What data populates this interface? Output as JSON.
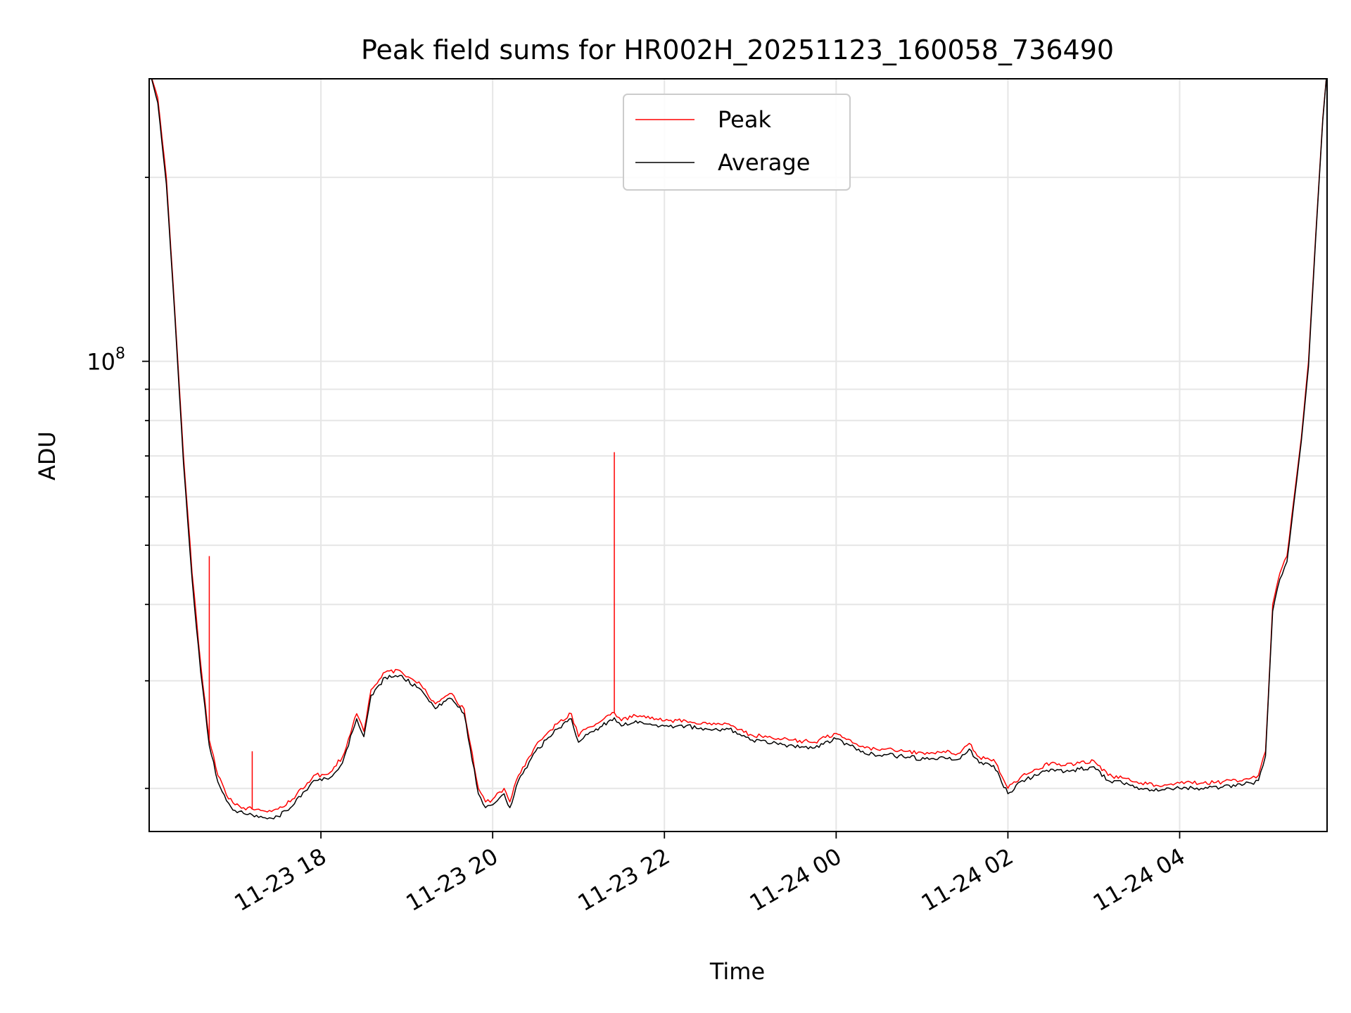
{
  "chart_data": {
    "type": "line",
    "title": "Peak field sums for HR002H_20251123_160058_736490",
    "xlabel": "Time",
    "ylabel": "ADU",
    "yscale": "log",
    "xlim": [
      "2025-11-23 16:00",
      "2025-11-24 05:43"
    ],
    "ylim": [
      17000000,
      290000000
    ],
    "x_ticks": [
      "2025-11-23 18:00",
      "2025-11-23 20:00",
      "2025-11-23 22:00",
      "2025-11-24 00:00",
      "2025-11-24 02:00",
      "2025-11-24 04:00"
    ],
    "x_tick_labels": [
      "11-23 18",
      "11-23 20",
      "11-23 22",
      "11-24 00",
      "11-24 02",
      "11-24 04"
    ],
    "y_major_ticks": [
      100000000
    ],
    "y_major_tick_label": {
      "base": "10",
      "exponent": "8"
    },
    "y_minor_ticks": [
      20000000,
      30000000,
      40000000,
      50000000,
      60000000,
      70000000,
      80000000,
      90000000,
      200000000
    ],
    "grid": true,
    "legend": {
      "position": "upper center",
      "entries": [
        "Peak",
        "Average"
      ]
    },
    "series": [
      {
        "name": "Peak",
        "color": "#ff0000",
        "x": [
          "2025-11-23 16:00",
          "2025-11-23 16:06",
          "2025-11-23 16:12",
          "2025-11-23 16:18",
          "2025-11-23 16:24",
          "2025-11-23 16:30",
          "2025-11-23 16:36",
          "2025-11-23 16:42",
          "2025-11-23 16:48",
          "2025-11-23 16:54",
          "2025-11-23 17:00",
          "2025-11-23 17:06",
          "2025-11-23 17:12",
          "2025-11-23 17:18",
          "2025-11-23 17:24",
          "2025-11-23 17:30",
          "2025-11-23 17:40",
          "2025-11-23 17:55",
          "2025-11-23 18:05",
          "2025-11-23 18:15",
          "2025-11-23 18:25",
          "2025-11-23 18:30",
          "2025-11-23 18:35",
          "2025-11-23 18:45",
          "2025-11-23 18:55",
          "2025-11-23 19:10",
          "2025-11-23 19:20",
          "2025-11-23 19:30",
          "2025-11-23 19:40",
          "2025-11-23 19:50",
          "2025-11-23 19:55",
          "2025-11-23 20:00",
          "2025-11-23 20:08",
          "2025-11-23 20:12",
          "2025-11-23 20:18",
          "2025-11-23 20:30",
          "2025-11-23 20:45",
          "2025-11-23 20:55",
          "2025-11-23 21:00",
          "2025-11-23 21:05",
          "2025-11-23 21:15",
          "2025-11-23 21:25",
          "2025-11-23 21:30",
          "2025-11-23 21:40",
          "2025-11-23 21:50",
          "2025-11-23 22:00",
          "2025-11-23 22:15",
          "2025-11-23 22:30",
          "2025-11-23 22:45",
          "2025-11-23 23:00",
          "2025-11-23 23:15",
          "2025-11-23 23:30",
          "2025-11-23 23:45",
          "2025-11-24 00:00",
          "2025-11-24 00:10",
          "2025-11-24 00:20",
          "2025-11-24 00:35",
          "2025-11-24 00:50",
          "2025-11-24 01:05",
          "2025-11-24 01:15",
          "2025-11-24 01:25",
          "2025-11-24 01:33",
          "2025-11-24 01:40",
          "2025-11-24 01:50",
          "2025-11-24 02:00",
          "2025-11-24 02:10",
          "2025-11-24 02:20",
          "2025-11-24 02:30",
          "2025-11-24 02:40",
          "2025-11-24 02:50",
          "2025-11-24 03:00",
          "2025-11-24 03:10",
          "2025-11-24 03:20",
          "2025-11-24 03:30",
          "2025-11-24 03:45",
          "2025-11-24 04:00",
          "2025-11-24 04:15",
          "2025-11-24 04:30",
          "2025-11-24 04:45",
          "2025-11-24 04:50",
          "2025-11-24 04:55",
          "2025-11-24 05:00",
          "2025-11-24 05:05",
          "2025-11-24 05:10",
          "2025-11-24 05:15",
          "2025-11-24 05:20",
          "2025-11-24 05:25",
          "2025-11-24 05:30",
          "2025-11-24 05:35",
          "2025-11-24 05:40",
          "2025-11-24 05:43"
        ],
        "y": [
          300000000,
          270000000,
          200000000,
          120000000,
          70000000,
          45000000,
          32000000,
          24000000,
          21000000,
          19500000,
          18800000,
          18600000,
          18500000,
          18400000,
          18400000,
          18500000,
          19200000,
          21000000,
          21100000,
          22500000,
          26500000,
          24800000,
          29000000,
          31000000,
          31200000,
          29500000,
          27500000,
          28600000,
          27000000,
          20000000,
          19000000,
          19200000,
          20000000,
          19000000,
          21000000,
          23500000,
          25500000,
          26500000,
          24300000,
          25000000,
          25700000,
          26600000,
          25800000,
          26300000,
          26000000,
          25800000,
          25800000,
          25500000,
          25500000,
          24500000,
          24200000,
          24000000,
          23800000,
          24600000,
          24000000,
          23300000,
          23200000,
          23000000,
          22800000,
          23000000,
          22800000,
          23700000,
          22500000,
          22300000,
          20000000,
          21000000,
          21500000,
          22000000,
          21800000,
          22000000,
          22200000,
          21000000,
          20800000,
          20500000,
          20200000,
          20400000,
          20400000,
          20500000,
          20700000,
          20800000,
          21000000,
          23000000,
          40000000,
          45000000,
          48000000,
          60000000,
          75000000,
          100000000,
          160000000,
          250000000,
          300000000
        ],
        "spikes": [
          {
            "x": "2025-11-23 16:42",
            "y": 48000000
          },
          {
            "x": "2025-11-23 17:12",
            "y": 23000000
          },
          {
            "x": "2025-11-23 21:25",
            "y": 71000000
          }
        ]
      },
      {
        "name": "Average",
        "color": "#000000",
        "x": [
          "2025-11-23 16:00",
          "2025-11-23 16:06",
          "2025-11-23 16:12",
          "2025-11-23 16:18",
          "2025-11-23 16:24",
          "2025-11-23 16:30",
          "2025-11-23 16:36",
          "2025-11-23 16:42",
          "2025-11-23 16:48",
          "2025-11-23 16:54",
          "2025-11-23 17:00",
          "2025-11-23 17:06",
          "2025-11-23 17:12",
          "2025-11-23 17:18",
          "2025-11-23 17:24",
          "2025-11-23 17:30",
          "2025-11-23 17:40",
          "2025-11-23 17:55",
          "2025-11-23 18:05",
          "2025-11-23 18:15",
          "2025-11-23 18:25",
          "2025-11-23 18:30",
          "2025-11-23 18:35",
          "2025-11-23 18:45",
          "2025-11-23 18:55",
          "2025-11-23 19:10",
          "2025-11-23 19:20",
          "2025-11-23 19:30",
          "2025-11-23 19:40",
          "2025-11-23 19:50",
          "2025-11-23 19:55",
          "2025-11-23 20:00",
          "2025-11-23 20:08",
          "2025-11-23 20:12",
          "2025-11-23 20:18",
          "2025-11-23 20:30",
          "2025-11-23 20:45",
          "2025-11-23 20:55",
          "2025-11-23 21:00",
          "2025-11-23 21:05",
          "2025-11-23 21:15",
          "2025-11-23 21:25",
          "2025-11-23 21:30",
          "2025-11-23 21:40",
          "2025-11-23 21:50",
          "2025-11-23 22:00",
          "2025-11-23 22:15",
          "2025-11-23 22:30",
          "2025-11-23 22:45",
          "2025-11-23 23:00",
          "2025-11-23 23:15",
          "2025-11-23 23:30",
          "2025-11-23 23:45",
          "2025-11-24 00:00",
          "2025-11-24 00:10",
          "2025-11-24 00:20",
          "2025-11-24 00:35",
          "2025-11-24 00:50",
          "2025-11-24 01:05",
          "2025-11-24 01:15",
          "2025-11-24 01:25",
          "2025-11-24 01:33",
          "2025-11-24 01:40",
          "2025-11-24 01:50",
          "2025-11-24 02:00",
          "2025-11-24 02:10",
          "2025-11-24 02:20",
          "2025-11-24 02:30",
          "2025-11-24 02:40",
          "2025-11-24 02:50",
          "2025-11-24 03:00",
          "2025-11-24 03:10",
          "2025-11-24 03:20",
          "2025-11-24 03:30",
          "2025-11-24 03:45",
          "2025-11-24 04:00",
          "2025-11-24 04:15",
          "2025-11-24 04:30",
          "2025-11-24 04:45",
          "2025-11-24 04:50",
          "2025-11-24 04:55",
          "2025-11-24 05:00",
          "2025-11-24 05:05",
          "2025-11-24 05:10",
          "2025-11-24 05:15",
          "2025-11-24 05:20",
          "2025-11-24 05:25",
          "2025-11-24 05:30",
          "2025-11-24 05:35",
          "2025-11-24 05:40",
          "2025-11-24 05:43"
        ],
        "y": [
          300000000,
          265000000,
          195000000,
          118000000,
          68000000,
          44000000,
          31000000,
          23500000,
          20500000,
          19100000,
          18400000,
          18200000,
          18100000,
          18000000,
          17900000,
          18000000,
          18700000,
          20600000,
          20700000,
          22000000,
          26000000,
          24300000,
          28400000,
          30400000,
          30600000,
          29000000,
          27000000,
          28100000,
          26500000,
          19600000,
          18600000,
          18800000,
          19600000,
          18600000,
          20600000,
          23000000,
          25000000,
          26000000,
          23800000,
          24500000,
          25200000,
          26100000,
          25300000,
          25800000,
          25500000,
          25300000,
          25300000,
          25000000,
          25000000,
          24000000,
          23700000,
          23500000,
          23300000,
          24100000,
          23500000,
          22800000,
          22700000,
          22500000,
          22300000,
          22500000,
          22300000,
          23200000,
          22000000,
          21800000,
          19600000,
          20600000,
          21000000,
          21500000,
          21300000,
          21500000,
          21700000,
          20600000,
          20400000,
          20100000,
          19800000,
          20000000,
          20000000,
          20100000,
          20300000,
          20400000,
          20600000,
          22600000,
          39000000,
          44000000,
          47000000,
          59000000,
          74000000,
          98000000,
          158000000,
          248000000,
          300000000
        ]
      }
    ]
  }
}
